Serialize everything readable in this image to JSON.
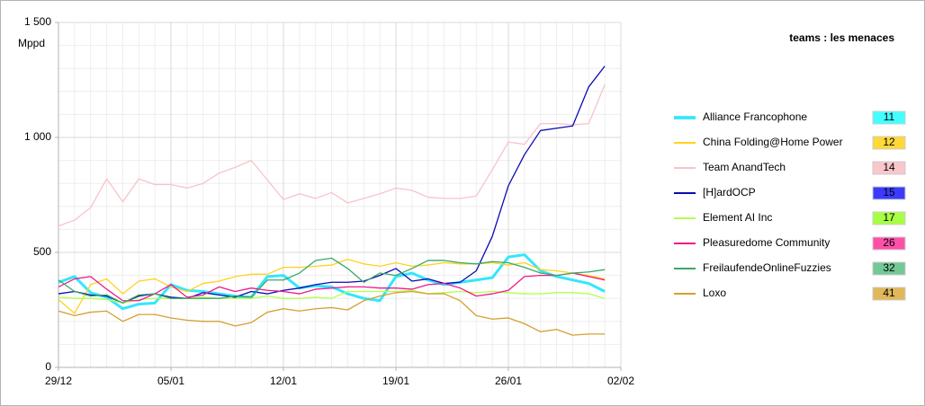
{
  "chart_data": {
    "type": "line",
    "title": "teams : les menaces",
    "y_label": "Mppd",
    "x": [
      0,
      1,
      2,
      3,
      4,
      5,
      6,
      7,
      8,
      9,
      10,
      11,
      12,
      13,
      14,
      15,
      16,
      17,
      18,
      19,
      20,
      21,
      22,
      23,
      24,
      25,
      26,
      27,
      28,
      29,
      30,
      31,
      32,
      33,
      34
    ],
    "xlim": [
      0,
      35
    ],
    "xticks": [
      {
        "value": 0,
        "label": "29/12"
      },
      {
        "value": 7,
        "label": "05/01"
      },
      {
        "value": 14,
        "label": "12/01"
      },
      {
        "value": 21,
        "label": "19/01"
      },
      {
        "value": 28,
        "label": "26/01"
      },
      {
        "value": 35,
        "label": "02/02"
      }
    ],
    "ylim": [
      0,
      1500
    ],
    "yticks": [
      0,
      500,
      {
        "value": 1000,
        "label": "1 000"
      },
      {
        "value": 1500,
        "label": "1 500"
      }
    ],
    "grid": true,
    "series": [
      {
        "name": "Alliance Francophone",
        "rank": "11",
        "color": "#33e6ff",
        "box_color": "#44ffff",
        "width": 3,
        "values": [
          370,
          395,
          325,
          305,
          255,
          275,
          280,
          360,
          335,
          330,
          320,
          310,
          305,
          395,
          400,
          345,
          355,
          350,
          320,
          300,
          290,
          395,
          410,
          380,
          360,
          370,
          380,
          390,
          480,
          490,
          420,
          395,
          380,
          365,
          330
        ]
      },
      {
        "name": "China Folding@Home Power",
        "rank": "12",
        "color": "#ffd21f",
        "box_color": "#ffd83a",
        "width": 1.3,
        "values": [
          295,
          235,
          360,
          385,
          320,
          375,
          385,
          350,
          330,
          365,
          375,
          395,
          405,
          405,
          435,
          435,
          440,
          445,
          470,
          450,
          440,
          455,
          440,
          445,
          455,
          450,
          450,
          455,
          445,
          455,
          425,
          420,
          410,
          400,
          385
        ]
      },
      {
        "name": "Team AnandTech",
        "rank": "14",
        "color": "#f8c3ca",
        "box_color": "#f9c6cc",
        "width": 1.3,
        "values": [
          615,
          640,
          695,
          820,
          720,
          820,
          795,
          795,
          780,
          800,
          845,
          870,
          900,
          815,
          730,
          755,
          735,
          760,
          715,
          735,
          755,
          780,
          770,
          740,
          735,
          735,
          745,
          860,
          980,
          970,
          1060,
          1060,
          1055,
          1060,
          1230
        ]
      },
      {
        "name": "[H]ardOCP",
        "rank": "15",
        "color": "#0a0ab4",
        "box_color": "#3b3bff",
        "width": 1.3,
        "values": [
          320,
          330,
          315,
          310,
          280,
          310,
          320,
          305,
          300,
          325,
          315,
          305,
          330,
          320,
          335,
          345,
          360,
          370,
          370,
          375,
          400,
          430,
          375,
          385,
          365,
          370,
          420,
          570,
          790,
          925,
          1030,
          1040,
          1050,
          1220,
          1310
        ]
      },
      {
        "name": "Element AI Inc",
        "rank": "17",
        "color": "#b3ff4d",
        "box_color": "#a6ff44",
        "width": 1.3,
        "values": [
          305,
          300,
          300,
          295,
          280,
          295,
          300,
          300,
          300,
          305,
          300,
          300,
          300,
          310,
          300,
          300,
          305,
          300,
          330,
          330,
          330,
          330,
          335,
          320,
          325,
          330,
          325,
          330,
          325,
          320,
          320,
          325,
          325,
          320,
          300
        ]
      },
      {
        "name": "Pleasuredome Community",
        "rank": "26",
        "color": "#ee1a8a",
        "box_color": "#ff4fa8",
        "width": 1.3,
        "values": [
          350,
          385,
          395,
          340,
          290,
          290,
          320,
          360,
          305,
          315,
          350,
          330,
          345,
          335,
          330,
          320,
          340,
          345,
          350,
          350,
          345,
          345,
          340,
          360,
          365,
          345,
          310,
          320,
          335,
          395,
          400,
          400,
          410,
          395,
          380
        ]
      },
      {
        "name": "FreilaufendeOnlineFuzzies",
        "rank": "32",
        "color": "#3aa868",
        "box_color": "#73c895",
        "width": 1.3,
        "values": [
          380,
          330,
          310,
          315,
          280,
          315,
          320,
          300,
          300,
          300,
          300,
          310,
          305,
          380,
          380,
          410,
          465,
          475,
          430,
          370,
          410,
          400,
          430,
          465,
          465,
          455,
          450,
          460,
          455,
          435,
          410,
          400,
          410,
          415,
          425
        ]
      },
      {
        "name": "Loxo",
        "rank": "41",
        "color": "#d4a030",
        "box_color": "#e0b85a",
        "width": 1.3,
        "values": [
          245,
          225,
          240,
          245,
          200,
          230,
          230,
          215,
          205,
          200,
          200,
          180,
          195,
          240,
          255,
          245,
          255,
          260,
          250,
          290,
          310,
          325,
          330,
          320,
          320,
          290,
          225,
          210,
          215,
          190,
          155,
          165,
          140,
          145,
          145
        ]
      }
    ]
  }
}
